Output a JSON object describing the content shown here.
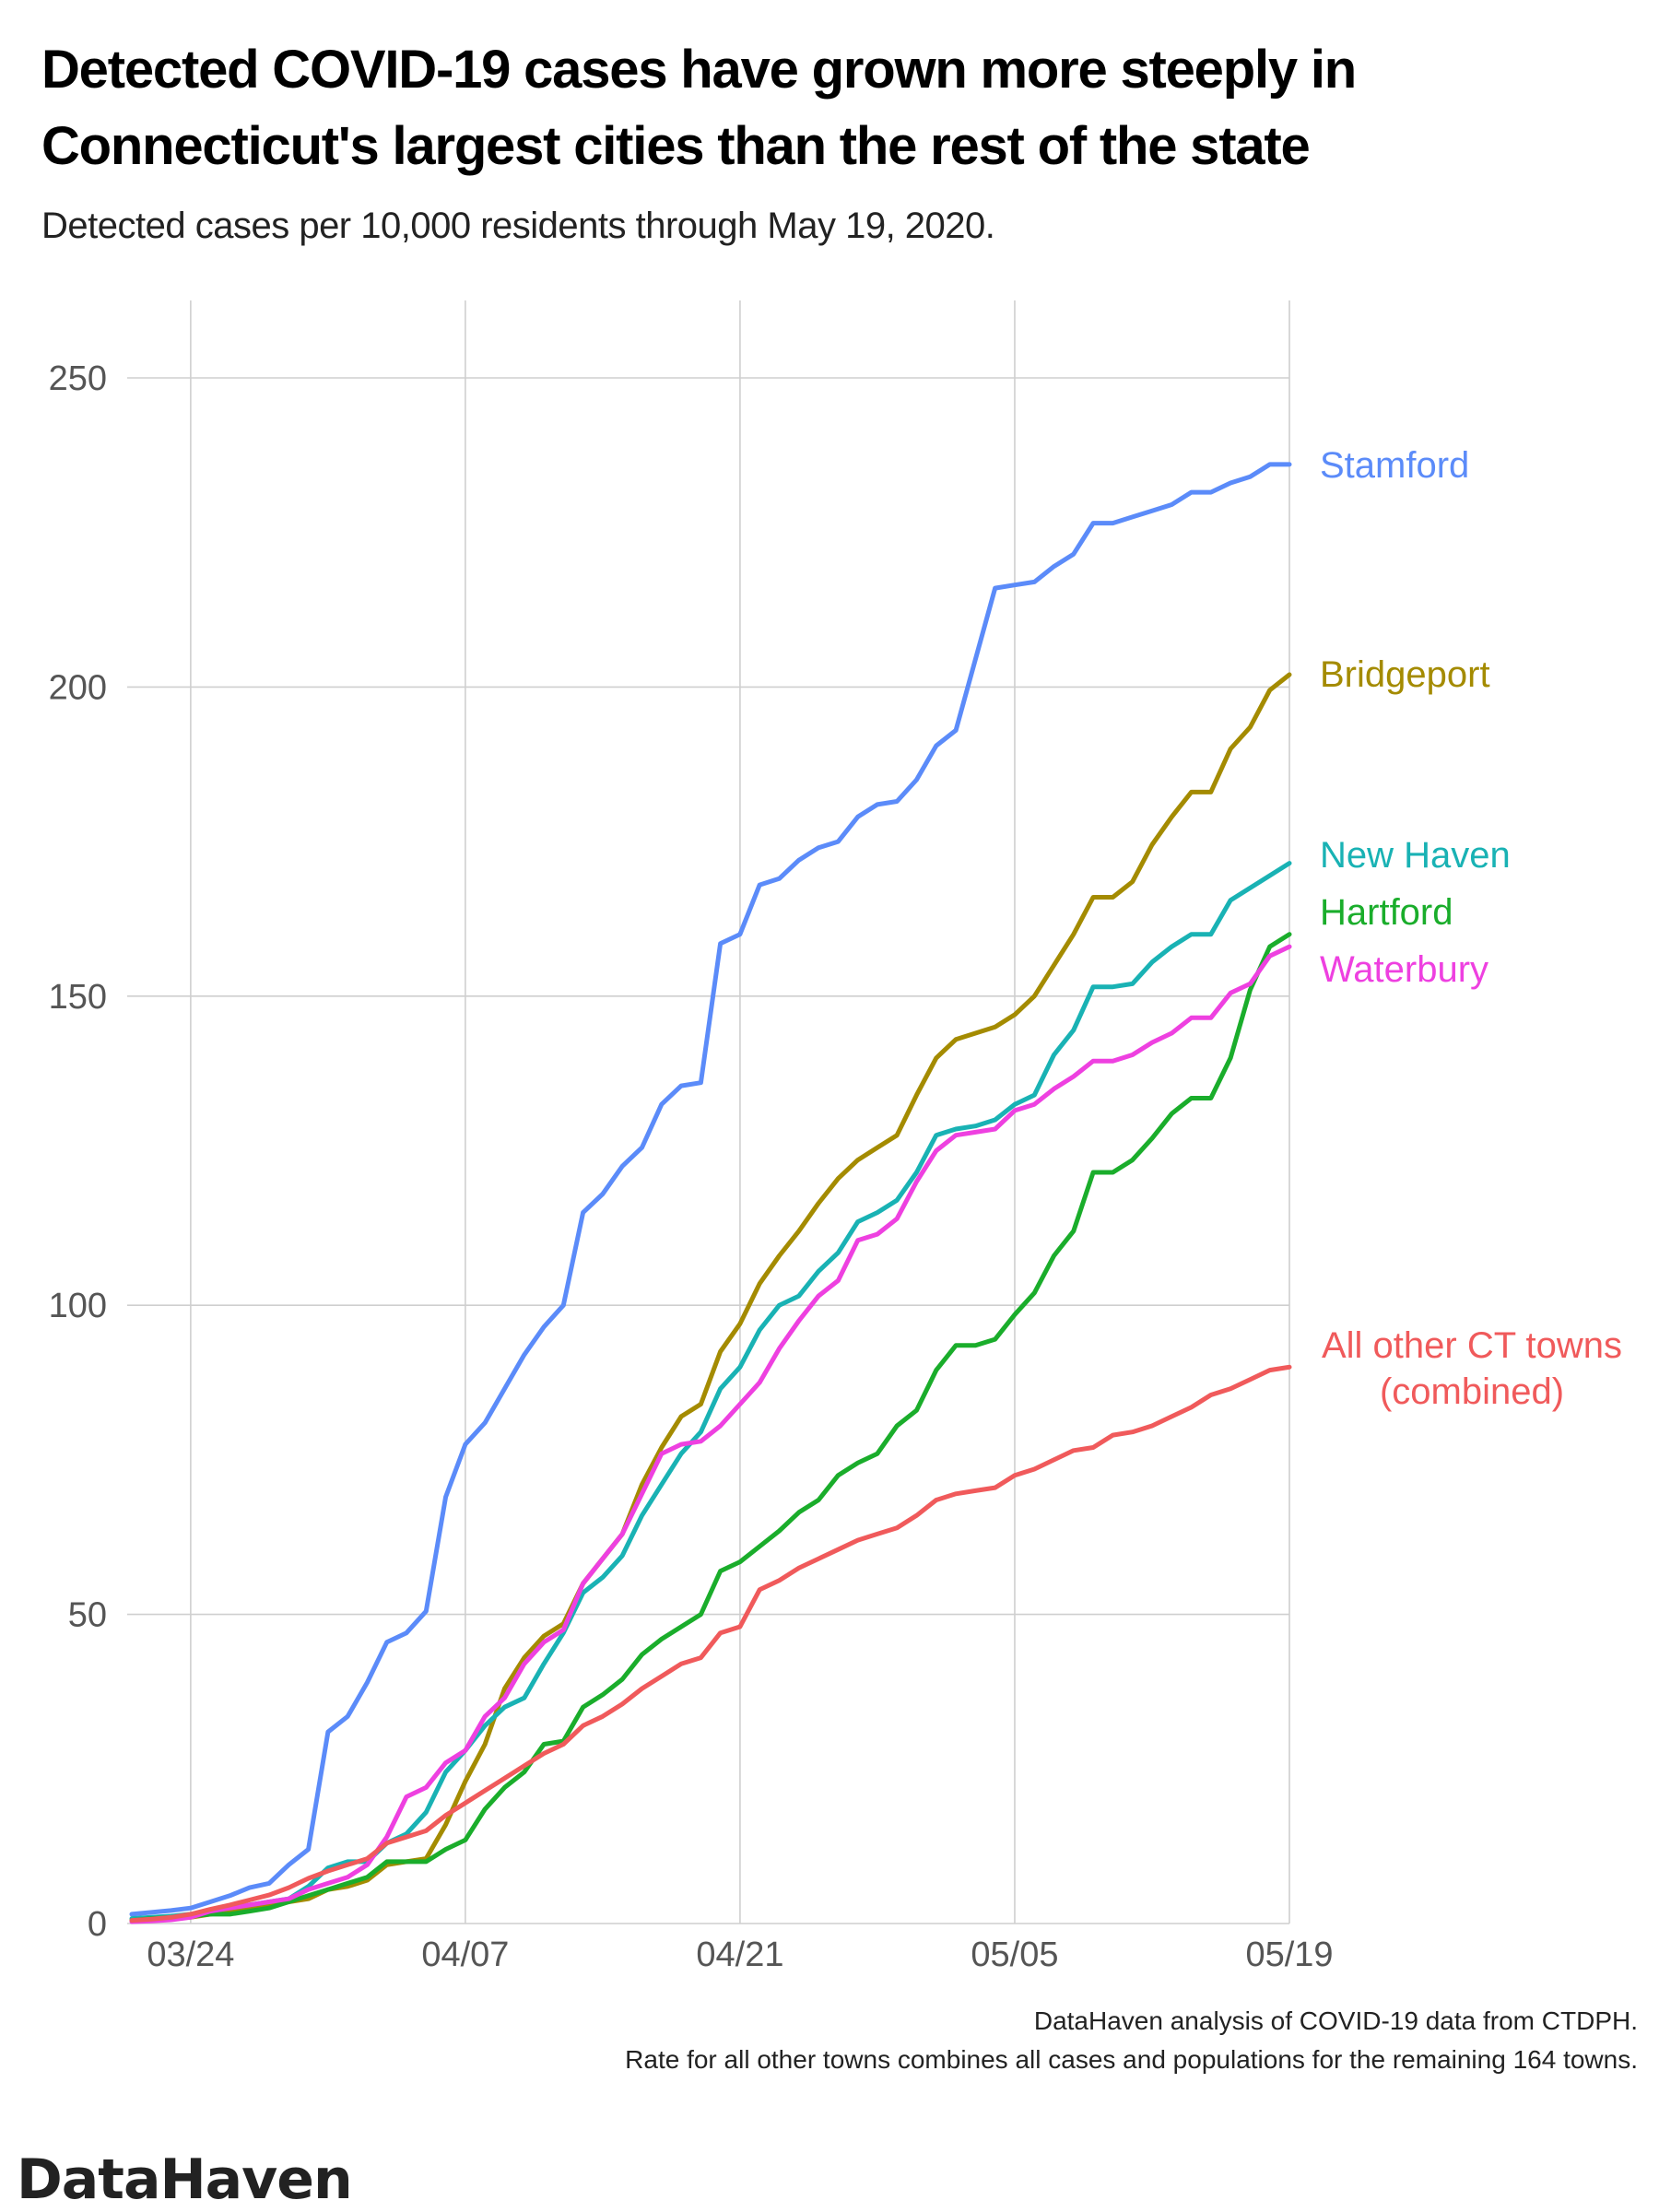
{
  "chart_data": {
    "type": "line",
    "title": "Detected COVID-19 cases have grown more steeply in Connecticut's largest cities than the rest of the state",
    "title_lines": [
      "Detected COVID-19 cases have grown more steeply in",
      "Connecticut's largest cities than the rest of the state"
    ],
    "subtitle": "Detected cases per 10,000 residents through May 19, 2020.",
    "xlabel": "",
    "ylabel": "",
    "ylim": [
      0,
      260
    ],
    "yticks": [
      "0",
      "50",
      "100",
      "150",
      "200",
      "250"
    ],
    "xticks": [
      "03/24",
      "04/07",
      "04/21",
      "05/05",
      "05/19"
    ],
    "grid": true,
    "legend": "direct labels at line ends (right)",
    "x": [
      "03/21",
      "03/22",
      "03/23",
      "03/24",
      "03/25",
      "03/26",
      "03/27",
      "03/28",
      "03/29",
      "03/30",
      "03/31",
      "04/01",
      "04/02",
      "04/03",
      "04/04",
      "04/05",
      "04/06",
      "04/07",
      "04/08",
      "04/09",
      "04/10",
      "04/11",
      "04/12",
      "04/13",
      "04/14",
      "04/15",
      "04/16",
      "04/17",
      "04/18",
      "04/19",
      "04/20",
      "04/21",
      "04/22",
      "04/23",
      "04/24",
      "04/25",
      "04/26",
      "04/27",
      "04/28",
      "04/29",
      "04/30",
      "05/01",
      "05/02",
      "05/03",
      "05/04",
      "05/05",
      "05/06",
      "05/07",
      "05/08",
      "05/09",
      "05/10",
      "05/11",
      "05/12",
      "05/13",
      "05/14",
      "05/15",
      "05/16",
      "05/17",
      "05/18",
      "05/19"
    ],
    "series": [
      {
        "name": "Stamford",
        "color": "#5b8bf9",
        "label_lines": [
          "Stamford"
        ],
        "values": [
          1.5,
          1.8,
          2.1,
          2.5,
          3.5,
          4.5,
          5.8,
          6.5,
          9.5,
          12,
          31,
          33.5,
          39,
          45.5,
          47,
          50.5,
          69,
          77.5,
          81,
          86.5,
          92,
          96.5,
          100,
          115,
          118,
          122.5,
          125.5,
          132.5,
          135.5,
          136,
          158.5,
          160,
          168,
          169,
          172,
          174,
          175,
          179,
          181,
          181.5,
          185,
          190.5,
          193,
          204.5,
          216,
          216.5,
          217,
          219.5,
          221.5,
          226.5,
          226.5,
          227.5,
          228.5,
          229.5,
          231.5,
          231.5,
          233,
          234,
          236,
          236
        ]
      },
      {
        "name": "Bridgeport",
        "color": "#a48b00",
        "label_lines": [
          "Bridgeport"
        ],
        "values": [
          0.5,
          0.6,
          0.8,
          1,
          1.5,
          2,
          2.5,
          3,
          3.5,
          4,
          5.5,
          6,
          7,
          9.5,
          10,
          10.5,
          16,
          23,
          29,
          38,
          43,
          46.5,
          48.5,
          55,
          59,
          63,
          71,
          77,
          82,
          84,
          92.5,
          97,
          103.5,
          108,
          112,
          116.5,
          120.5,
          123.5,
          125.5,
          127.5,
          134,
          140,
          143,
          144,
          145,
          147,
          150,
          155,
          160,
          166,
          166,
          168.5,
          174.5,
          179,
          183,
          183,
          190,
          193.5,
          199.5,
          202
        ]
      },
      {
        "name": "New Haven",
        "color": "#19b2b4",
        "label_lines": [
          "New Haven"
        ],
        "values": [
          0.8,
          1,
          1.2,
          1.5,
          2,
          2.5,
          3,
          3.5,
          4,
          6,
          9,
          10,
          10,
          13,
          14.5,
          18,
          24.5,
          28,
          32,
          35,
          36.5,
          42,
          47,
          53.5,
          56,
          59.5,
          66,
          71,
          76,
          79.5,
          86.5,
          90,
          96,
          100,
          101.5,
          105.5,
          108.5,
          113.5,
          115,
          117,
          121.5,
          127.5,
          128.5,
          129,
          130,
          132.5,
          134,
          140.5,
          144.5,
          151.5,
          151.5,
          152,
          155.5,
          158,
          160,
          160,
          165.5,
          167.5,
          169.5,
          171.5
        ]
      },
      {
        "name": "Hartford",
        "color": "#1aad2b",
        "label_lines": [
          "Hartford"
        ],
        "values": [
          0.5,
          0.8,
          1,
          1.2,
          1.5,
          1.5,
          2,
          2.5,
          3.5,
          4.5,
          5.5,
          6.5,
          7.5,
          10,
          10,
          10,
          12,
          13.5,
          18.5,
          22,
          24.5,
          29,
          29.5,
          35,
          37,
          39.5,
          43.5,
          46,
          48,
          50,
          57,
          58.5,
          61,
          63.5,
          66.5,
          68.5,
          72.5,
          74.5,
          76,
          80.5,
          83,
          89.5,
          93.5,
          93.5,
          94.5,
          98.5,
          102,
          108,
          112,
          121.5,
          121.5,
          123.5,
          127,
          131,
          133.5,
          133.5,
          140,
          151,
          158,
          160
        ]
      },
      {
        "name": "Waterbury",
        "color": "#ee40e0",
        "label_lines": [
          "Waterbury"
        ],
        "values": [
          0.3,
          0.4,
          0.6,
          1,
          2,
          2.5,
          3,
          3.5,
          4,
          5.5,
          6.5,
          7.5,
          9.5,
          14,
          20.5,
          22,
          26,
          28,
          33.5,
          36.5,
          42,
          45.5,
          47.5,
          55,
          59,
          63,
          69.5,
          76,
          77.5,
          78,
          80.5,
          84,
          87.5,
          93,
          97.5,
          101.5,
          104,
          110.5,
          111.5,
          114,
          120,
          125,
          127.5,
          128,
          128.5,
          131.5,
          132.5,
          135,
          137,
          139.5,
          139.5,
          140.5,
          142.5,
          144,
          146.5,
          146.5,
          150.5,
          152,
          156.5,
          158
        ]
      },
      {
        "name": "All other CT towns (combined)",
        "color": "#f05a5b",
        "label_lines": [
          "All other CT towns",
          "(combined)"
        ],
        "values": [
          0.5,
          0.7,
          1,
          1.5,
          2.3,
          3,
          3.8,
          4.6,
          5.8,
          7.3,
          8.5,
          9.5,
          10.5,
          13,
          14,
          15,
          17.5,
          19.5,
          21.5,
          23.5,
          25.5,
          27.5,
          29,
          32,
          33.5,
          35.5,
          38,
          40,
          42,
          43,
          47,
          48,
          54,
          55.5,
          57.5,
          59,
          60.5,
          62,
          63,
          64,
          66,
          68.5,
          69.5,
          70,
          70.5,
          72.5,
          73.5,
          75,
          76.5,
          77,
          79,
          79.5,
          80.5,
          82,
          83.5,
          85.5,
          86.5,
          88,
          89.5,
          90
        ]
      }
    ],
    "caption_lines": [
      "DataHaven analysis of COVID-19 data from CTDPH.",
      "Rate for all other towns combines all cases and populations for the remaining 164 towns."
    ]
  },
  "branding": {
    "logo_text": "DataHaven"
  }
}
